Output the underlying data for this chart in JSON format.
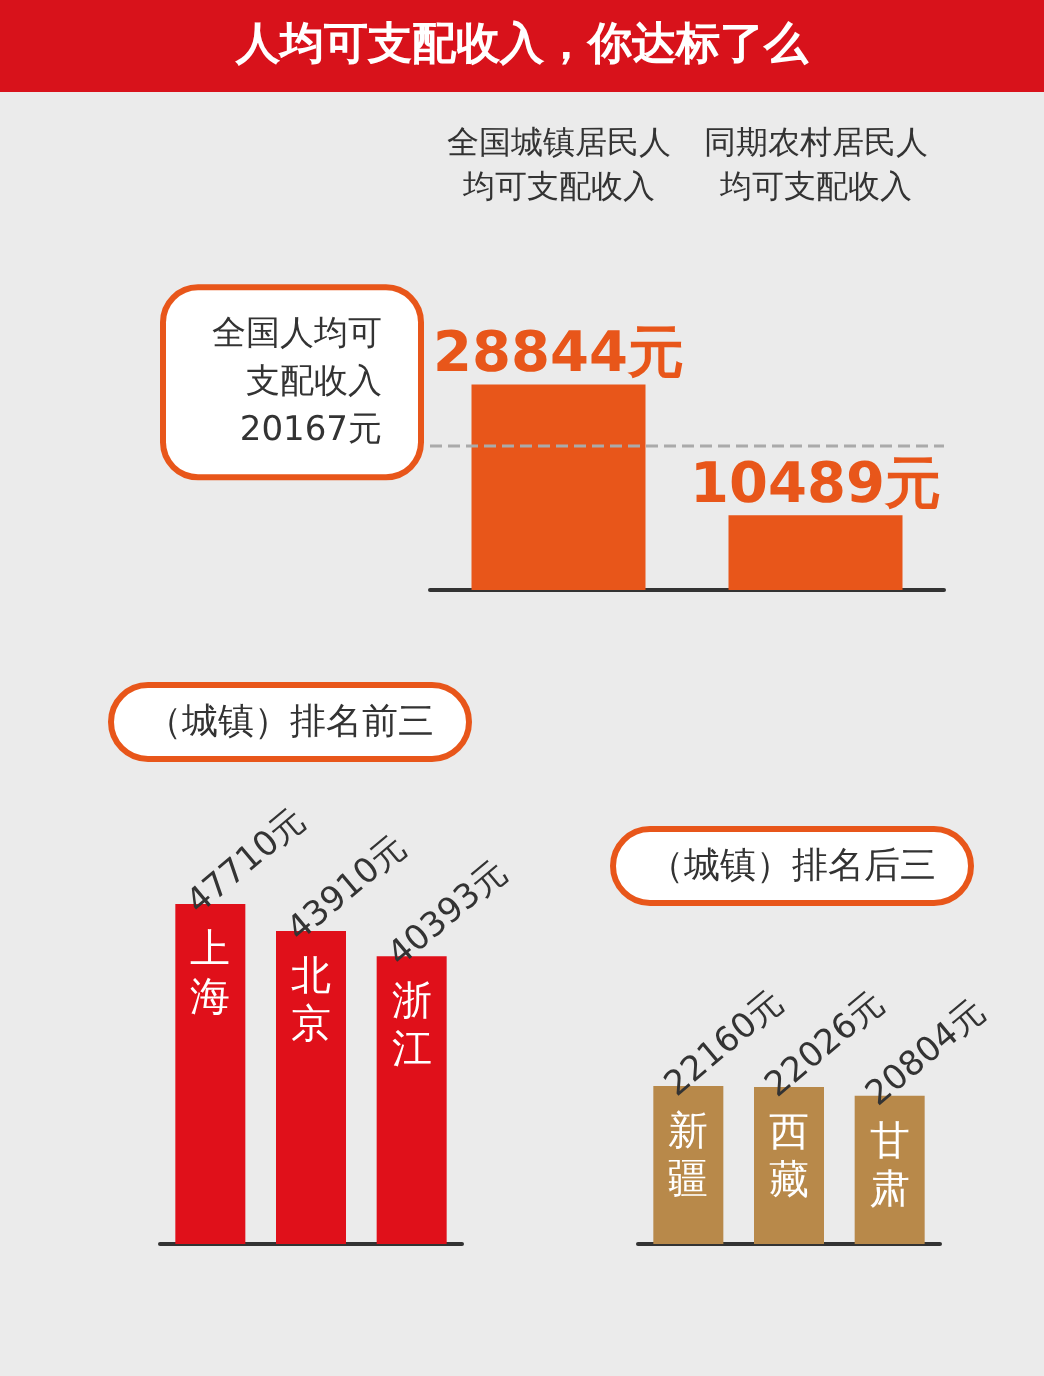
{
  "chart_data": [
    {
      "type": "bar",
      "title": "人均可支配收入，你达标了么",
      "categories": [
        "全国城镇居民人均可支配收入",
        "同期农村居民人均可支配收入"
      ],
      "values": [
        28844,
        10489
      ],
      "value_labels": [
        "28844元",
        "10489元"
      ],
      "color": "#e8561a",
      "ref_lines": [
        {
          "axis": "y",
          "value": 20167,
          "label": "全国人均可支配收入20167元",
          "color": "#aaaaaa",
          "line_style": "dashed"
        }
      ]
    },
    {
      "type": "bar",
      "title": "（城镇）排名前三",
      "categories": [
        "上海",
        "北京",
        "浙江"
      ],
      "values": [
        47710,
        43910,
        40393
      ],
      "value_labels": [
        "47710元",
        "43910元",
        "40393元"
      ],
      "color": "#e0101a"
    },
    {
      "type": "bar",
      "title": "（城镇）排名后三",
      "categories": [
        "新疆",
        "西藏",
        "甘肃"
      ],
      "values": [
        22160,
        22026,
        20804
      ],
      "value_labels": [
        "22160元",
        "22026元",
        "20804元"
      ],
      "color": "#b8894a"
    }
  ]
}
